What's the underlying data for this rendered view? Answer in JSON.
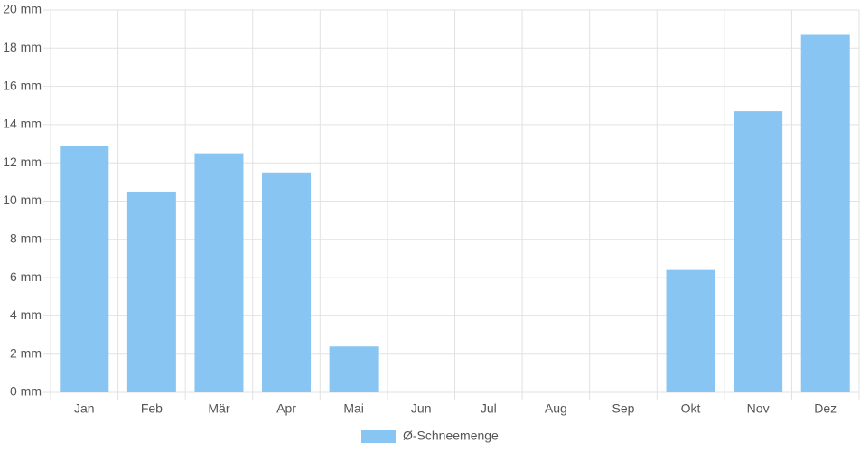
{
  "chart_data": {
    "type": "bar",
    "categories": [
      "Jan",
      "Feb",
      "Mär",
      "Apr",
      "Mai",
      "Jun",
      "Jul",
      "Aug",
      "Sep",
      "Okt",
      "Nov",
      "Dez"
    ],
    "series": [
      {
        "name": "Ø-Schneemenge",
        "color": "#88c5f2",
        "values": [
          12.9,
          10.5,
          12.5,
          11.5,
          2.4,
          0,
          0,
          0,
          0,
          6.4,
          14.7,
          18.7
        ]
      }
    ],
    "ylim": [
      0,
      20
    ],
    "yticks": [
      {
        "value": 0,
        "label": "0 mm"
      },
      {
        "value": 2,
        "label": "2 mm"
      },
      {
        "value": 4,
        "label": "4 mm"
      },
      {
        "value": 6,
        "label": "6 mm"
      },
      {
        "value": 8,
        "label": "8 mm"
      },
      {
        "value": 10,
        "label": "10 mm"
      },
      {
        "value": 12,
        "label": "12 mm"
      },
      {
        "value": 14,
        "label": "14 mm"
      },
      {
        "value": 16,
        "label": "16 mm"
      },
      {
        "value": 18,
        "label": "18 mm"
      },
      {
        "value": 20,
        "label": "20 mm"
      }
    ],
    "grid": true,
    "legend": "bottom"
  }
}
